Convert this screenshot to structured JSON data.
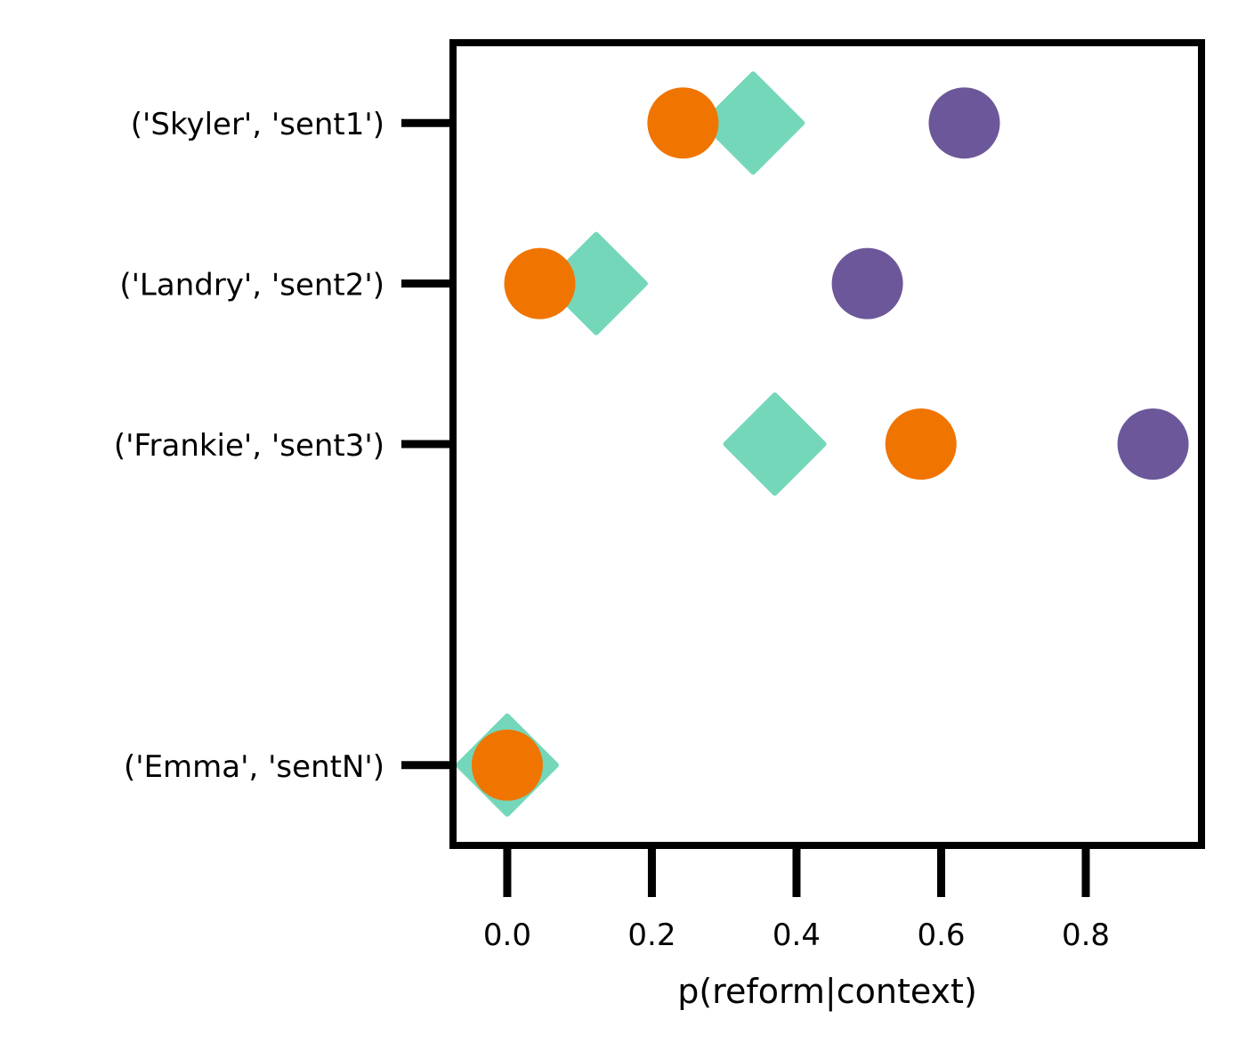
{
  "chart_data": {
    "type": "scatter",
    "title": "",
    "xlabel": "p(reform|context)",
    "ylabel": "",
    "xlim": [
      -0.075,
      0.96
    ],
    "x_ticks": [
      0.0,
      0.2,
      0.4,
      0.6,
      0.8
    ],
    "x_tick_labels": [
      "0.0",
      "0.2",
      "0.4",
      "0.6",
      "0.8"
    ],
    "y_ticks": [
      3,
      2,
      1,
      -1
    ],
    "y_tick_labels": [
      "('Skyler', 'sent1')",
      "('Landry', 'sent2')",
      "('Frankie', 'sent3')",
      "('Emma', 'sentN')"
    ],
    "ylim": [
      -1.5,
      3.5
    ],
    "grid": false,
    "series": [
      {
        "marker": "diamond",
        "color": "#74d7b9",
        "points": [
          {
            "y": 3,
            "x": 0.34
          },
          {
            "y": 2,
            "x": 0.123
          },
          {
            "y": 1,
            "x": 0.37
          },
          {
            "y": -1,
            "x": 0.0
          }
        ]
      },
      {
        "marker": "circle",
        "color": "#f07400",
        "points": [
          {
            "y": 3,
            "x": 0.243
          },
          {
            "y": 2,
            "x": 0.045
          },
          {
            "y": 1,
            "x": 0.572
          },
          {
            "y": -1,
            "x": 0.0
          }
        ]
      },
      {
        "marker": "circle",
        "color": "#6b5799",
        "points": [
          {
            "y": 3,
            "x": 0.632
          },
          {
            "y": 2,
            "x": 0.498
          },
          {
            "y": 1,
            "x": 0.893
          }
        ]
      }
    ]
  }
}
